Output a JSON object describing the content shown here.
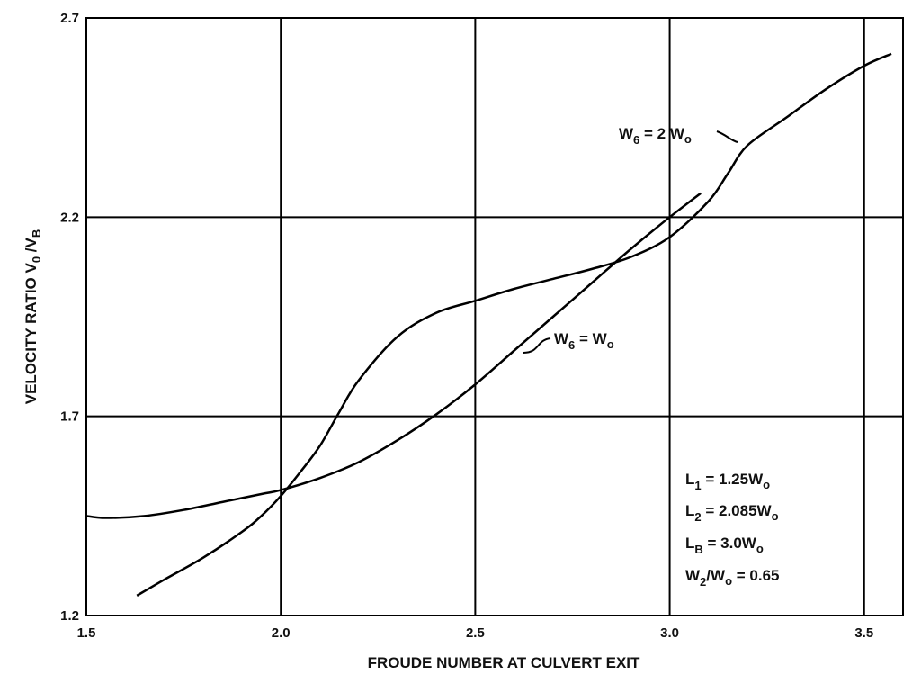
{
  "chart_data": {
    "type": "line",
    "xlabel": "FROUDE NUMBER AT CULVERT EXIT",
    "ylabel": {
      "prefix": "VELOCITY RATIO  V",
      "sub1": "0",
      "mid": " /V",
      "sub2": "B"
    },
    "xlim": [
      1.5,
      3.6
    ],
    "ylim": [
      1.2,
      2.7
    ],
    "x_ticks": [
      "1.5",
      "2.0",
      "2.5",
      "3.0",
      "3.5"
    ],
    "x_tick_values": [
      1.5,
      2.0,
      2.5,
      3.0,
      3.5
    ],
    "y_ticks": [
      "1.2",
      "1.7",
      "2.2",
      "2.7"
    ],
    "y_tick_values": [
      1.2,
      1.7,
      2.2,
      2.7
    ],
    "grid": true,
    "series": [
      {
        "x": [
          1.5,
          1.55,
          1.65,
          1.75,
          1.85,
          1.95,
          2.0,
          2.1,
          2.2,
          2.3,
          2.4,
          2.5,
          2.6,
          2.7,
          2.8,
          2.9,
          3.0,
          3.08
        ],
        "y": [
          1.45,
          1.445,
          1.45,
          1.465,
          1.485,
          1.505,
          1.515,
          1.545,
          1.585,
          1.64,
          1.705,
          1.78,
          1.865,
          1.95,
          2.035,
          2.12,
          2.2,
          2.26
        ]
      },
      {
        "x": [
          1.63,
          1.7,
          1.8,
          1.9,
          1.95,
          2.0,
          2.05,
          2.1,
          2.15,
          2.2,
          2.3,
          2.4,
          2.5,
          2.6,
          2.7,
          2.8,
          2.9,
          3.0,
          3.1,
          3.15,
          3.2,
          3.3,
          3.4,
          3.5,
          3.57
        ],
        "y": [
          1.25,
          1.29,
          1.345,
          1.41,
          1.45,
          1.5,
          1.56,
          1.625,
          1.71,
          1.79,
          1.9,
          1.96,
          1.99,
          2.02,
          2.045,
          2.07,
          2.1,
          2.15,
          2.24,
          2.31,
          2.38,
          2.45,
          2.52,
          2.58,
          2.61
        ]
      }
    ],
    "annotations": {
      "curve_label_1": {
        "prefix": "W",
        "sub1": "6",
        "mid": " = W",
        "sub2": "o"
      },
      "curve_label_2": {
        "prefix": "W",
        "sub1": "6",
        "mid": " = 2 W",
        "sub2": "o"
      },
      "params": [
        {
          "a": "L",
          "a_sub": "1",
          "b": " = 1.25W",
          "b_sub": "o",
          "c": ""
        },
        {
          "a": "L",
          "a_sub": "2",
          "b": " = 2.085W",
          "b_sub": "o",
          "c": ""
        },
        {
          "a": "L",
          "a_sub": "B",
          "b": " = 3.0W",
          "b_sub": "o",
          "c": ""
        },
        {
          "a": "W",
          "a_sub": "2",
          "b": "/W",
          "b_sub": "o",
          "c": " = 0.65"
        }
      ]
    }
  }
}
